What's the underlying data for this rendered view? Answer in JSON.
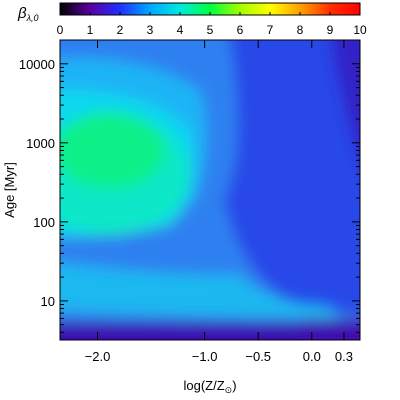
{
  "chart_data": {
    "type": "heatmap",
    "colorbar": {
      "label": "β",
      "label_sub": "λ,0",
      "ticks": [
        "0",
        "1",
        "2",
        "3",
        "4",
        "5",
        "6",
        "7",
        "8",
        "9",
        "10"
      ],
      "range": [
        0,
        10
      ],
      "colormap": [
        "#000000",
        "#5a00a0",
        "#2030ff",
        "#00a8ff",
        "#00e8e0",
        "#00ff40",
        "#a0ff00",
        "#ffff00",
        "#ffa000",
        "#ff3000",
        "#ff0000"
      ]
    },
    "xaxis": {
      "label": "log(Z/Z",
      "label_suffix": ")",
      "range": [
        -2.35,
        0.45
      ],
      "ticks": [
        {
          "value": -2.0,
          "label": "−2.0"
        },
        {
          "value": -1.0,
          "label": "−1.0"
        },
        {
          "value": -0.5,
          "label": "−0.5"
        },
        {
          "value": 0.0,
          "label": "0.0"
        },
        {
          "value": 0.3,
          "label": "0.3"
        }
      ]
    },
    "yaxis": {
      "label": "Age",
      "unit": "[Myr]",
      "scale": "log",
      "range": [
        3.2,
        20000
      ],
      "ticks": [
        {
          "value": 10,
          "label": "10"
        },
        {
          "value": 100,
          "label": "100"
        },
        {
          "value": 1000,
          "label": "1000"
        },
        {
          "value": 10000,
          "label": "10000"
        }
      ]
    }
  }
}
